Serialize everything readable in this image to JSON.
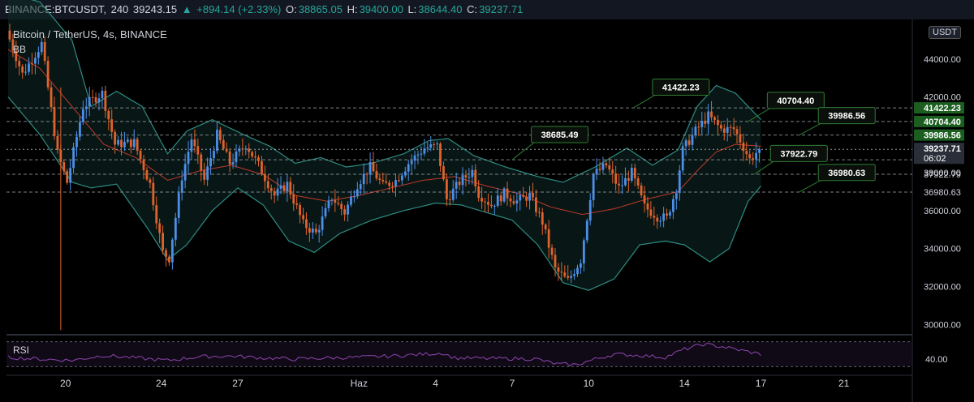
{
  "header": {
    "symbol": "BINANCE:BTCUSDT,",
    "interval": "240",
    "last": "39243.15",
    "change": "+894.14 (+2.33%)",
    "open_label": "O:",
    "open": "38865.05",
    "high_label": "H:",
    "high": "39400.00",
    "low_label": "L:",
    "low": "38644.40",
    "close_label": "C:",
    "close": "39237.71"
  },
  "legend": {
    "title": "Bitcoin / TetherUS, 4s, BINANCE",
    "indicator": "BB",
    "currency": "USDT"
  },
  "rsi": {
    "label": "RSI",
    "tick": "40.00"
  },
  "colors": {
    "up": "#4c8ee8",
    "down": "#e0622c",
    "band": "#2e8b82",
    "basis": "#c0392b",
    "rsi": "#8e44ad",
    "callout_border": "#2e7d32",
    "level_badge": "#1b5e20"
  },
  "chart_data": {
    "type": "candlestick",
    "title": "Bitcoin / TetherUS, 4s, BINANCE",
    "y_range": [
      29500,
      46000
    ],
    "y_ticks": [
      {
        "value": 30000,
        "label": "30000.00"
      },
      {
        "value": 32000,
        "label": "32000.00"
      },
      {
        "value": 34000,
        "label": "34000.00"
      },
      {
        "value": 36000,
        "label": "36000.00"
      },
      {
        "value": 38000,
        "label": "38000.00"
      },
      {
        "value": 40000,
        "label": "40000.00"
      },
      {
        "value": 42000,
        "label": "42000.00"
      },
      {
        "value": 44000,
        "label": "44000.00"
      }
    ],
    "x_ticks": [
      {
        "index": 18,
        "label": "20"
      },
      {
        "index": 48,
        "label": "24"
      },
      {
        "index": 72,
        "label": "27"
      },
      {
        "index": 110,
        "label": "Haz"
      },
      {
        "index": 134,
        "label": "4"
      },
      {
        "index": 158,
        "label": "7"
      },
      {
        "index": 182,
        "label": "10"
      },
      {
        "index": 212,
        "label": "14"
      },
      {
        "index": 236,
        "label": "17"
      },
      {
        "index": 262,
        "label": "21"
      }
    ],
    "candle_count": 236,
    "path": [
      [
        0,
        45500
      ],
      [
        5,
        43200
      ],
      [
        11,
        44800
      ],
      [
        16,
        39000
      ],
      [
        19,
        37500
      ],
      [
        24,
        41500
      ],
      [
        30,
        42200
      ],
      [
        34,
        39500
      ],
      [
        40,
        39600
      ],
      [
        45,
        37400
      ],
      [
        49,
        33800
      ],
      [
        51,
        33500
      ],
      [
        55,
        37800
      ],
      [
        58,
        39800
      ],
      [
        62,
        37600
      ],
      [
        66,
        40000
      ],
      [
        70,
        38500
      ],
      [
        75,
        39500
      ],
      [
        79,
        38400
      ],
      [
        84,
        36800
      ],
      [
        88,
        37400
      ],
      [
        93,
        35300
      ],
      [
        97,
        34800
      ],
      [
        102,
        36700
      ],
      [
        106,
        35900
      ],
      [
        110,
        37400
      ],
      [
        114,
        38300
      ],
      [
        118,
        37300
      ],
      [
        122,
        37600
      ],
      [
        126,
        38500
      ],
      [
        131,
        39300
      ],
      [
        135,
        39400
      ],
      [
        138,
        36600
      ],
      [
        142,
        37500
      ],
      [
        146,
        38100
      ],
      [
        148,
        36900
      ],
      [
        152,
        36300
      ],
      [
        156,
        36900
      ],
      [
        160,
        36500
      ],
      [
        164,
        36800
      ],
      [
        168,
        35400
      ],
      [
        172,
        32900
      ],
      [
        176,
        32300
      ],
      [
        180,
        33400
      ],
      [
        184,
        37900
      ],
      [
        188,
        38400
      ],
      [
        192,
        37200
      ],
      [
        196,
        38000
      ],
      [
        200,
        36200
      ],
      [
        204,
        35700
      ],
      [
        207,
        35600
      ],
      [
        210,
        37200
      ],
      [
        212,
        39200
      ],
      [
        216,
        40200
      ],
      [
        220,
        41000
      ],
      [
        224,
        40300
      ],
      [
        228,
        40300
      ],
      [
        230,
        39700
      ],
      [
        233,
        38700
      ],
      [
        236,
        39240
      ]
    ],
    "bb_upper": [
      [
        0,
        47500
      ],
      [
        10,
        47000
      ],
      [
        20,
        45000
      ],
      [
        26,
        41500
      ],
      [
        34,
        42300
      ],
      [
        42,
        41500
      ],
      [
        50,
        39000
      ],
      [
        56,
        40200
      ],
      [
        64,
        40800
      ],
      [
        74,
        40000
      ],
      [
        82,
        39400
      ],
      [
        90,
        38500
      ],
      [
        98,
        38800
      ],
      [
        106,
        38300
      ],
      [
        114,
        38500
      ],
      [
        124,
        39000
      ],
      [
        132,
        39700
      ],
      [
        138,
        39800
      ],
      [
        146,
        38900
      ],
      [
        156,
        38300
      ],
      [
        166,
        37800
      ],
      [
        174,
        37500
      ],
      [
        184,
        38300
      ],
      [
        194,
        39300
      ],
      [
        202,
        38400
      ],
      [
        210,
        39200
      ],
      [
        216,
        41500
      ],
      [
        222,
        42600
      ],
      [
        228,
        42200
      ],
      [
        236,
        40800
      ]
    ],
    "bb_basis": [
      [
        0,
        44500
      ],
      [
        10,
        43500
      ],
      [
        20,
        41500
      ],
      [
        30,
        39500
      ],
      [
        40,
        38800
      ],
      [
        50,
        37600
      ],
      [
        60,
        38100
      ],
      [
        70,
        38400
      ],
      [
        80,
        37900
      ],
      [
        90,
        36800
      ],
      [
        100,
        36500
      ],
      [
        110,
        36800
      ],
      [
        120,
        37200
      ],
      [
        130,
        37600
      ],
      [
        140,
        37800
      ],
      [
        150,
        37300
      ],
      [
        160,
        36900
      ],
      [
        170,
        36200
      ],
      [
        180,
        35800
      ],
      [
        190,
        36100
      ],
      [
        200,
        36600
      ],
      [
        210,
        37000
      ],
      [
        216,
        38100
      ],
      [
        222,
        39100
      ],
      [
        228,
        39500
      ],
      [
        236,
        39400
      ]
    ],
    "bb_lower": [
      [
        0,
        42000
      ],
      [
        10,
        40000
      ],
      [
        20,
        37500
      ],
      [
        26,
        37200
      ],
      [
        34,
        37400
      ],
      [
        44,
        35000
      ],
      [
        50,
        33400
      ],
      [
        56,
        34200
      ],
      [
        64,
        36000
      ],
      [
        72,
        37200
      ],
      [
        80,
        36300
      ],
      [
        88,
        34400
      ],
      [
        96,
        33800
      ],
      [
        104,
        34800
      ],
      [
        114,
        35500
      ],
      [
        124,
        36000
      ],
      [
        134,
        36400
      ],
      [
        142,
        36300
      ],
      [
        150,
        35900
      ],
      [
        158,
        35500
      ],
      [
        166,
        34200
      ],
      [
        174,
        32200
      ],
      [
        182,
        31800
      ],
      [
        190,
        32400
      ],
      [
        198,
        34200
      ],
      [
        206,
        34400
      ],
      [
        212,
        34200
      ],
      [
        220,
        33300
      ],
      [
        226,
        34000
      ],
      [
        232,
        36500
      ],
      [
        236,
        37300
      ]
    ],
    "rsi_range": [
      20,
      80
    ],
    "rsi": [
      [
        0,
        45
      ],
      [
        10,
        42
      ],
      [
        20,
        40
      ],
      [
        30,
        48
      ],
      [
        40,
        44
      ],
      [
        50,
        40
      ],
      [
        60,
        46
      ],
      [
        70,
        47
      ],
      [
        80,
        44
      ],
      [
        90,
        42
      ],
      [
        100,
        44
      ],
      [
        110,
        45
      ],
      [
        120,
        47
      ],
      [
        130,
        50
      ],
      [
        136,
        52
      ],
      [
        140,
        44
      ],
      [
        150,
        43
      ],
      [
        160,
        43
      ],
      [
        166,
        42
      ],
      [
        172,
        34
      ],
      [
        178,
        33
      ],
      [
        184,
        42
      ],
      [
        190,
        50
      ],
      [
        198,
        48
      ],
      [
        206,
        45
      ],
      [
        212,
        58
      ],
      [
        218,
        66
      ],
      [
        224,
        62
      ],
      [
        230,
        56
      ],
      [
        236,
        50
      ]
    ],
    "levels": [
      {
        "value": 41422.23,
        "label": "41422.23",
        "badge": true
      },
      {
        "value": 40704.4,
        "label": "40704.40",
        "badge": true
      },
      {
        "value": 39986.56,
        "label": "39986.56",
        "badge": true
      },
      {
        "value": 38685.49,
        "label": "38685.49",
        "badge": false
      },
      {
        "value": 37922.79,
        "label": "37922.79",
        "badge": false
      },
      {
        "value": 36980.63,
        "label": "36980.63",
        "badge": false
      }
    ],
    "callouts": [
      {
        "label": "41422.23",
        "anchor": [
          196,
          41422.23
        ],
        "box": [
          202,
          42600
        ]
      },
      {
        "label": "38685.49",
        "anchor": [
          158,
          38685.49
        ],
        "box": [
          164,
          40100
        ]
      },
      {
        "label": "40704.40",
        "anchor": [
          232,
          40704.4
        ],
        "box": [
          238,
          41900
        ]
      },
      {
        "label": "39986.56",
        "anchor": [
          248,
          39986.56
        ],
        "box": [
          254,
          41100
        ]
      },
      {
        "label": "37922.79",
        "anchor": [
          234,
          37922.79
        ],
        "box": [
          239,
          39100
        ]
      },
      {
        "label": "36980.63",
        "anchor": [
          248,
          36980.63
        ],
        "box": [
          254,
          38100
        ]
      }
    ],
    "current_price": {
      "value": 39237.71,
      "label": "39237.71",
      "timer": "06:02"
    }
  }
}
